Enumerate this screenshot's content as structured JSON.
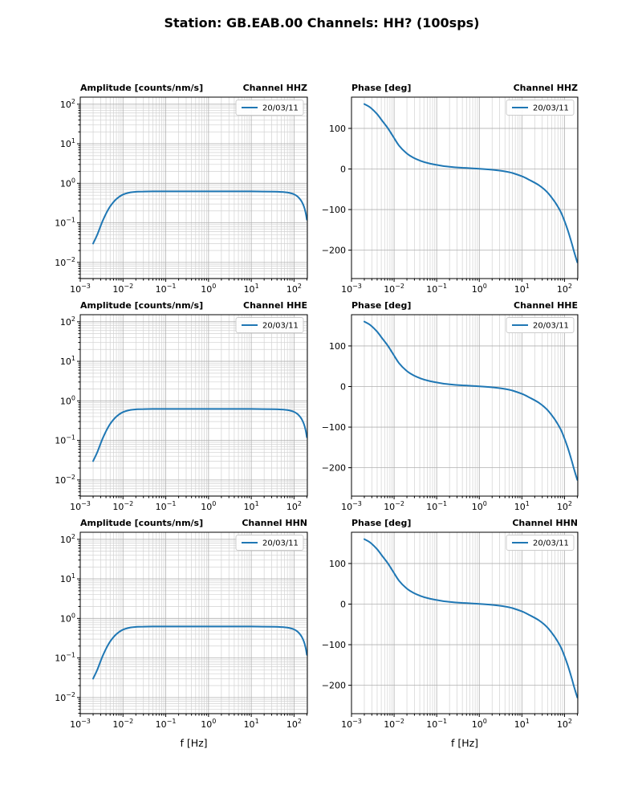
{
  "title": "Station: GB.EAB.00 Channels: HH? (100sps)",
  "xlabel": "f [Hz]",
  "legend_label": "20/03/11",
  "colors": {
    "line": "#1f77b4",
    "grid_major": "#b0b0b0",
    "grid_minor": "#d2d2d2",
    "spine": "#000000",
    "legend_border": "#cccccc",
    "legend_fill": "#ffffff"
  },
  "series_data": {
    "amplitude": {
      "f": [
        0.002,
        0.0025,
        0.0032,
        0.004,
        0.005,
        0.0065,
        0.008,
        0.01,
        0.013,
        0.017,
        0.022,
        0.03,
        0.05,
        0.1,
        0.3,
        1,
        3,
        10,
        20,
        35,
        50,
        70,
        90,
        110,
        130,
        150,
        170,
        185,
        200
      ],
      "v": [
        0.03,
        0.05,
        0.1,
        0.17,
        0.26,
        0.37,
        0.45,
        0.52,
        0.57,
        0.6,
        0.615,
        0.62,
        0.625,
        0.625,
        0.625,
        0.625,
        0.625,
        0.625,
        0.62,
        0.615,
        0.605,
        0.585,
        0.55,
        0.5,
        0.43,
        0.35,
        0.26,
        0.19,
        0.12
      ]
    },
    "phase": {
      "f": [
        0.002,
        0.0028,
        0.004,
        0.0055,
        0.0072,
        0.0095,
        0.013,
        0.019,
        0.028,
        0.042,
        0.065,
        0.1,
        0.15,
        0.25,
        0.4,
        0.7,
        1,
        1.6,
        2.5,
        4,
        6,
        10,
        15,
        25,
        40,
        60,
        80,
        100,
        120,
        145,
        170,
        200
      ],
      "v": [
        160,
        151,
        135,
        116,
        100,
        80,
        58,
        40,
        28,
        20,
        14,
        10,
        7,
        4.5,
        3,
        1.5,
        0.5,
        -1,
        -3,
        -6,
        -10,
        -18,
        -27,
        -40,
        -58,
        -82,
        -104,
        -128,
        -152,
        -180,
        -206,
        -230
      ]
    }
  },
  "chart_data": [
    {
      "id": "amplitude-hhz",
      "type": "line",
      "row": 0,
      "col": 0,
      "xscale": "log",
      "yscale": "log",
      "title_left": "Amplitude [counts/nm/s]",
      "title_right": "Channel HHZ",
      "xlim": [
        0.001,
        205
      ],
      "ylim": [
        0.0039,
        151
      ],
      "xtick_exponents": [
        -3,
        -2,
        -1,
        0,
        1,
        2
      ],
      "ytick_exponents": [
        2,
        1,
        0,
        -1,
        -2
      ],
      "legend": [
        "20/03/11"
      ],
      "legend_position": "upper right",
      "grid": "both",
      "series_ref": "amplitude"
    },
    {
      "id": "phase-hhz",
      "type": "line",
      "row": 0,
      "col": 1,
      "xscale": "log",
      "yscale": "linear",
      "title_left": "Phase [deg]",
      "title_right": "Channel HHZ",
      "xlim": [
        0.001,
        205
      ],
      "ylim": [
        -270,
        177
      ],
      "xtick_exponents": [
        -3,
        -2,
        -1,
        0,
        1,
        2
      ],
      "yticks": [
        100,
        0,
        -100,
        -200
      ],
      "legend": [
        "20/03/11"
      ],
      "legend_position": "upper right",
      "grid": "x-both-y-major",
      "series_ref": "phase"
    },
    {
      "id": "amplitude-hhe",
      "type": "line",
      "row": 1,
      "col": 0,
      "xscale": "log",
      "yscale": "log",
      "title_left": "Amplitude [counts/nm/s]",
      "title_right": "Channel HHE",
      "xlim": [
        0.001,
        205
      ],
      "ylim": [
        0.0039,
        151
      ],
      "xtick_exponents": [
        -3,
        -2,
        -1,
        0,
        1,
        2
      ],
      "ytick_exponents": [
        2,
        1,
        0,
        -1,
        -2
      ],
      "legend": [
        "20/03/11"
      ],
      "legend_position": "upper right",
      "grid": "both",
      "series_ref": "amplitude"
    },
    {
      "id": "phase-hhe",
      "type": "line",
      "row": 1,
      "col": 1,
      "xscale": "log",
      "yscale": "linear",
      "title_left": "Phase [deg]",
      "title_right": "Channel HHE",
      "xlim": [
        0.001,
        205
      ],
      "ylim": [
        -270,
        177
      ],
      "xtick_exponents": [
        -3,
        -2,
        -1,
        0,
        1,
        2
      ],
      "yticks": [
        100,
        0,
        -100,
        -200
      ],
      "legend": [
        "20/03/11"
      ],
      "legend_position": "upper right",
      "grid": "x-both-y-major",
      "series_ref": "phase"
    },
    {
      "id": "amplitude-hhn",
      "type": "line",
      "row": 2,
      "col": 0,
      "xscale": "log",
      "yscale": "log",
      "title_left": "Amplitude [counts/nm/s]",
      "title_right": "Channel HHN",
      "xlim": [
        0.001,
        205
      ],
      "ylim": [
        0.0039,
        151
      ],
      "xtick_exponents": [
        -3,
        -2,
        -1,
        0,
        1,
        2
      ],
      "ytick_exponents": [
        2,
        1,
        0,
        -1,
        -2
      ],
      "legend": [
        "20/03/11"
      ],
      "legend_position": "upper right",
      "grid": "both",
      "xlabel": "f [Hz]",
      "series_ref": "amplitude"
    },
    {
      "id": "phase-hhn",
      "type": "line",
      "row": 2,
      "col": 1,
      "xscale": "log",
      "yscale": "linear",
      "title_left": "Phase [deg]",
      "title_right": "Channel HHN",
      "xlim": [
        0.001,
        205
      ],
      "ylim": [
        -270,
        177
      ],
      "xtick_exponents": [
        -3,
        -2,
        -1,
        0,
        1,
        2
      ],
      "yticks": [
        100,
        0,
        -100,
        -200
      ],
      "legend": [
        "20/03/11"
      ],
      "legend_position": "upper right",
      "grid": "x-both-y-major",
      "xlabel": "f [Hz]",
      "series_ref": "phase"
    }
  ]
}
